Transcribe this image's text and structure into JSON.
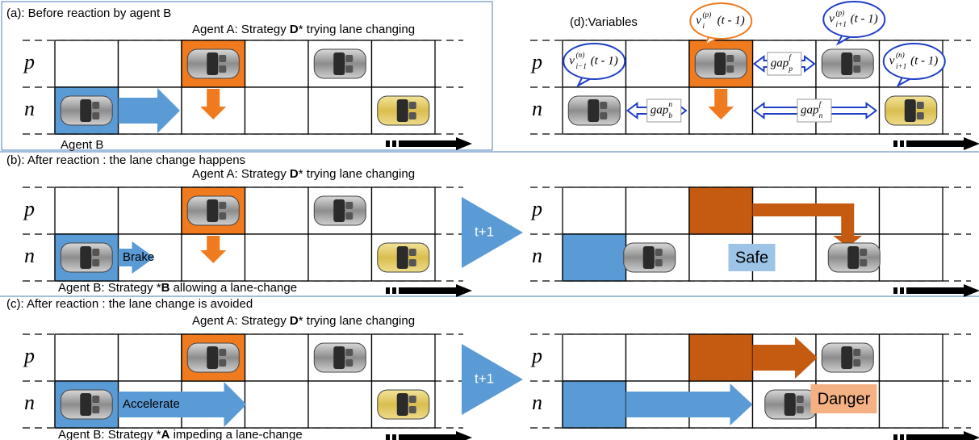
{
  "panel_a": {
    "title": "(a): Before reaction by agent B",
    "agent_a": {
      "prefix": "Agent A: Strategy ",
      "strong": "D",
      "suffix": "* trying lane changing"
    },
    "lanes": [
      "p",
      "n"
    ],
    "agent_b": "Agent B"
  },
  "panel_b": {
    "title": "(b): After reaction : the lane change happens",
    "agent_a": {
      "prefix": "Agent A: Strategy ",
      "strong": "D",
      "suffix": "* trying lane changing"
    },
    "lanes": [
      "p",
      "n"
    ],
    "action": "Brake",
    "agent_b": {
      "prefix": "Agent B: Strategy *",
      "strong": "B",
      "suffix": " allowing a lane-change"
    },
    "step": "t+1",
    "next_lanes": [
      "p",
      "n"
    ],
    "outcome": "Safe"
  },
  "panel_c": {
    "title": "(c): After reaction : the lane change is avoided",
    "agent_a": {
      "prefix": "Agent A: Strategy ",
      "strong": "D",
      "suffix": "* trying lane changing"
    },
    "lanes": [
      "p",
      "n"
    ],
    "action": "Accelerate",
    "agent_b": {
      "prefix": "Agent B: Strategy *",
      "strong": "A",
      "suffix": " impeding a lane-change"
    },
    "step": "t+1",
    "next_lanes": [
      "p",
      "n"
    ],
    "outcome": "Danger"
  },
  "panel_d": {
    "title": "(d):Variables",
    "lanes": [
      "p",
      "n"
    ],
    "speeds": [
      {
        "base": "v",
        "sup": "(n)",
        "sub": "i−1",
        "arg": "(t - 1)"
      },
      {
        "base": "v",
        "sup": "(p)",
        "sub": "i",
        "arg": "(t - 1)"
      },
      {
        "base": "v",
        "sup": "(p)",
        "sub": "i+1",
        "arg": "(t - 1)"
      },
      {
        "base": "v",
        "sup": "(n)",
        "sub": "i+1",
        "arg": "(t - 1)"
      }
    ],
    "gaps": [
      {
        "base": "gap",
        "sup": "f",
        "sub": "p"
      },
      {
        "base": "gap",
        "sup": "n",
        "sub": "b"
      },
      {
        "base": "gap",
        "sup": "f",
        "sub": "n"
      }
    ]
  }
}
